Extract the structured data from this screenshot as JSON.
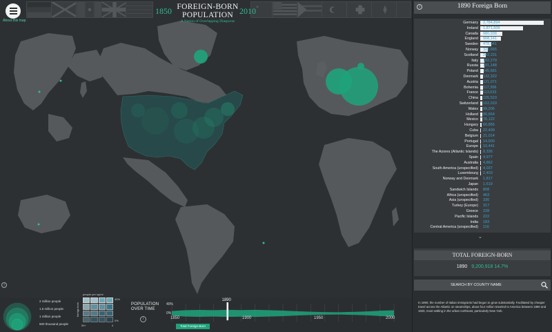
{
  "header": {
    "year_start": "1850",
    "year_end": "2010",
    "title_line1": "FOREIGN-BORN",
    "title_line2": "POPULATION",
    "subtitle": "A Nation of Overlapping Diasporas",
    "about_label": "About this map"
  },
  "flags": [
    {
      "name": "Germany"
    },
    {
      "name": "Scandinavia"
    },
    {
      "name": "Mexico"
    },
    {
      "name": "United Kingdom"
    },
    {
      "name": "Japan"
    },
    {
      "name": "Italy"
    },
    {
      "name": "China"
    },
    {
      "name": "Vietnam"
    },
    {
      "name": "Cuba"
    },
    {
      "name": "Turkey"
    },
    {
      "name": "Switzerland"
    },
    {
      "name": "Canada"
    }
  ],
  "panel": {
    "title": "1890 Foreign Born",
    "max_value": 2784894,
    "countries": [
      {
        "name": "Germany",
        "value": 2784894,
        "label": "2,784,894"
      },
      {
        "name": "Ireland",
        "value": 1871509,
        "label": "1,871,509"
      },
      {
        "name": "Canada",
        "value": 980938,
        "label": "980,938"
      },
      {
        "name": "England",
        "value": 908141,
        "label": "908,141"
      },
      {
        "name": "Sweden",
        "value": 478041,
        "label": "478,041"
      },
      {
        "name": "Norway",
        "value": 322665,
        "label": "322,665"
      },
      {
        "name": "Scotland",
        "value": 242231,
        "label": "242,231"
      },
      {
        "name": "Italy",
        "value": 182279,
        "label": "182,279"
      },
      {
        "name": "Russia",
        "value": 181148,
        "label": "181,148"
      },
      {
        "name": "Poland",
        "value": 145681,
        "label": "145,681"
      },
      {
        "name": "Denmark",
        "value": 132322,
        "label": "132,322"
      },
      {
        "name": "Austria",
        "value": 121071,
        "label": "121,071"
      },
      {
        "name": "Bohemia",
        "value": 117306,
        "label": "117,306"
      },
      {
        "name": "France",
        "value": 113633,
        "label": "113,633"
      },
      {
        "name": "China",
        "value": 105523,
        "label": "105,523"
      },
      {
        "name": "Switzerland",
        "value": 102010,
        "label": "102,010"
      },
      {
        "name": "Wales",
        "value": 99206,
        "label": "99,206"
      },
      {
        "name": "Holland",
        "value": 80654,
        "label": "80,654"
      },
      {
        "name": "Mexico",
        "value": 76122,
        "label": "76,122"
      },
      {
        "name": "Hungary",
        "value": 60855,
        "label": "60,855"
      },
      {
        "name": "Cuba",
        "value": 22409,
        "label": "22,409"
      },
      {
        "name": "Belgium",
        "value": 21014,
        "label": "21,014"
      },
      {
        "name": "Portugal",
        "value": 14600,
        "label": "14,600"
      },
      {
        "name": "Europe",
        "value": 10441,
        "label": "10,441"
      },
      {
        "name": "The Azores (Atlantic Islands)",
        "value": 8336,
        "label": "8,336"
      },
      {
        "name": "Spain",
        "value": 4977,
        "label": "4,977"
      },
      {
        "name": "Australia",
        "value": 4862,
        "label": "4,862"
      },
      {
        "name": "South America (unspecified)",
        "value": 4037,
        "label": "4,037"
      },
      {
        "name": "Luxembourg",
        "value": 2403,
        "label": "2,403"
      },
      {
        "name": "Norway and Denmark",
        "value": 1817,
        "label": "1,817"
      },
      {
        "name": "Japan",
        "value": 1619,
        "label": "1,619"
      },
      {
        "name": "Sandwich Islands",
        "value": 808,
        "label": "808"
      },
      {
        "name": "Africa (unspecified)",
        "value": 463,
        "label": "463"
      },
      {
        "name": "Asia (unspecified)",
        "value": 330,
        "label": "330"
      },
      {
        "name": "Turkey (Europe)",
        "value": 317,
        "label": "317"
      },
      {
        "name": "Greece",
        "value": 228,
        "label": "228"
      },
      {
        "name": "Pacific Islands",
        "value": 222,
        "label": "222"
      },
      {
        "name": "India",
        "value": 183,
        "label": "183"
      },
      {
        "name": "Central America (unspecified)",
        "value": 116,
        "label": "116"
      }
    ]
  },
  "total": {
    "title": "TOTAL FOREIGN-BORN",
    "year": "1890",
    "value": "9,200,918",
    "percent": "14.7%"
  },
  "search": {
    "label": "SEARCH BY COUNTY NAME"
  },
  "narrative": "In 1890, the number of Italian immigrants had begun to grow substantially. Facilitated by cheaper travel across the Atlantic on steamships, about four million traveled to America between 1880 and 1920, most settling in the urban northeast, particularly New York.",
  "bubble_legend": {
    "items": [
      "2 million people",
      "1.5 million people",
      "1 million people",
      "500 thousand people"
    ]
  },
  "density_legend": {
    "title": "people per sq/mi",
    "pct_top": "40%",
    "pct_bot": "0%",
    "axis_left": "50+",
    "axis_bottom": "0",
    "axis_side": "foreign born"
  },
  "timeline": {
    "label": "POPULATION OVER TIME",
    "pct_top": "40%",
    "pct_bot": "0%",
    "years": [
      "1850",
      "1900",
      "1950",
      "2000"
    ],
    "current_year": "1890",
    "legend_label": "Total Foreign-Born",
    "series": {
      "x": [
        1850,
        1860,
        1870,
        1880,
        1890,
        1900,
        1910,
        1920,
        1930,
        1940,
        1950,
        1960,
        1970,
        1980,
        1990,
        2000,
        2010
      ],
      "percent": [
        9.7,
        13.2,
        14.4,
        13.3,
        14.7,
        13.6,
        14.7,
        13.2,
        11.6,
        8.8,
        6.9,
        5.4,
        4.7,
        6.2,
        7.9,
        11.1,
        12.9
      ]
    }
  },
  "colors": {
    "accent": "#2fbf8f",
    "value_text": "#3aa3d1",
    "background": "#2b2e30"
  }
}
